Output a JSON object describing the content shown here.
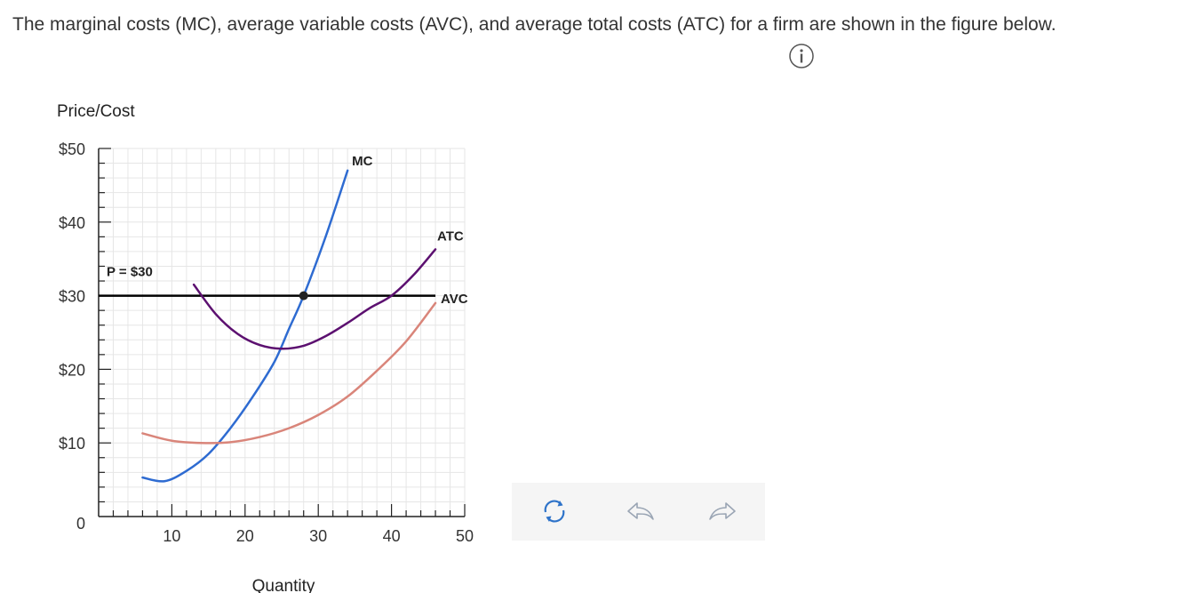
{
  "question": {
    "text": "The marginal costs (MC), average variable costs (AVC), and average total costs (ATC) for a firm are shown in the figure below."
  },
  "icons": {
    "info": "info-circle-icon",
    "reset": "refresh-icon",
    "undo": "undo-arrow-icon",
    "redo": "redo-arrow-icon"
  },
  "colors": {
    "mc": "#2e6bd1",
    "atc": "#5c1070",
    "avc": "#d9857a",
    "price": "#000000",
    "grid": "#e6e6e6",
    "axis": "#222222"
  },
  "chart_data": {
    "type": "line",
    "xlabel": "Quantity",
    "ylabel": "Price/Cost",
    "xlim": [
      0,
      50
    ],
    "ylim": [
      0,
      50
    ],
    "x_ticks": [
      {
        "value": 10,
        "label": "10"
      },
      {
        "value": 20,
        "label": "20"
      },
      {
        "value": 30,
        "label": "30"
      },
      {
        "value": 40,
        "label": "40"
      },
      {
        "value": 50,
        "label": "50"
      }
    ],
    "y_ticks": [
      {
        "value": 0,
        "label": "0"
      },
      {
        "value": 10,
        "label": "$10"
      },
      {
        "value": 20,
        "label": "$20"
      },
      {
        "value": 30,
        "label": "$30"
      },
      {
        "value": 40,
        "label": "$40"
      },
      {
        "value": 50,
        "label": "$50"
      }
    ],
    "grid": true,
    "series": [
      {
        "name": "MC",
        "key": "mc",
        "points": [
          [
            6,
            5.3
          ],
          [
            9,
            4.8
          ],
          [
            12,
            6.2
          ],
          [
            15,
            8.5
          ],
          [
            18,
            12
          ],
          [
            21,
            16.2
          ],
          [
            24,
            21
          ],
          [
            26,
            25.5
          ],
          [
            28,
            30
          ],
          [
            31,
            38
          ],
          [
            34,
            47
          ]
        ]
      },
      {
        "name": "ATC",
        "key": "atc",
        "points": [
          [
            13,
            31.5
          ],
          [
            16,
            27.5
          ],
          [
            19,
            24.8
          ],
          [
            22,
            23.3
          ],
          [
            25,
            22.8
          ],
          [
            28,
            23.2
          ],
          [
            31,
            24.5
          ],
          [
            34,
            26.3
          ],
          [
            37,
            28.3
          ],
          [
            40,
            30
          ],
          [
            43,
            32.8
          ],
          [
            46,
            36.3
          ]
        ]
      },
      {
        "name": "AVC",
        "key": "avc",
        "points": [
          [
            6,
            11.3
          ],
          [
            10,
            10.3
          ],
          [
            14,
            10
          ],
          [
            18,
            10.1
          ],
          [
            22,
            10.8
          ],
          [
            26,
            12
          ],
          [
            30,
            13.8
          ],
          [
            34,
            16.3
          ],
          [
            38,
            19.8
          ],
          [
            42,
            23.8
          ],
          [
            46,
            29
          ]
        ]
      }
    ],
    "price_line": {
      "label": "P = $30",
      "value": 30,
      "x_start": 0,
      "x_end": 46
    },
    "marked_point": {
      "x": 28,
      "y": 30
    }
  }
}
